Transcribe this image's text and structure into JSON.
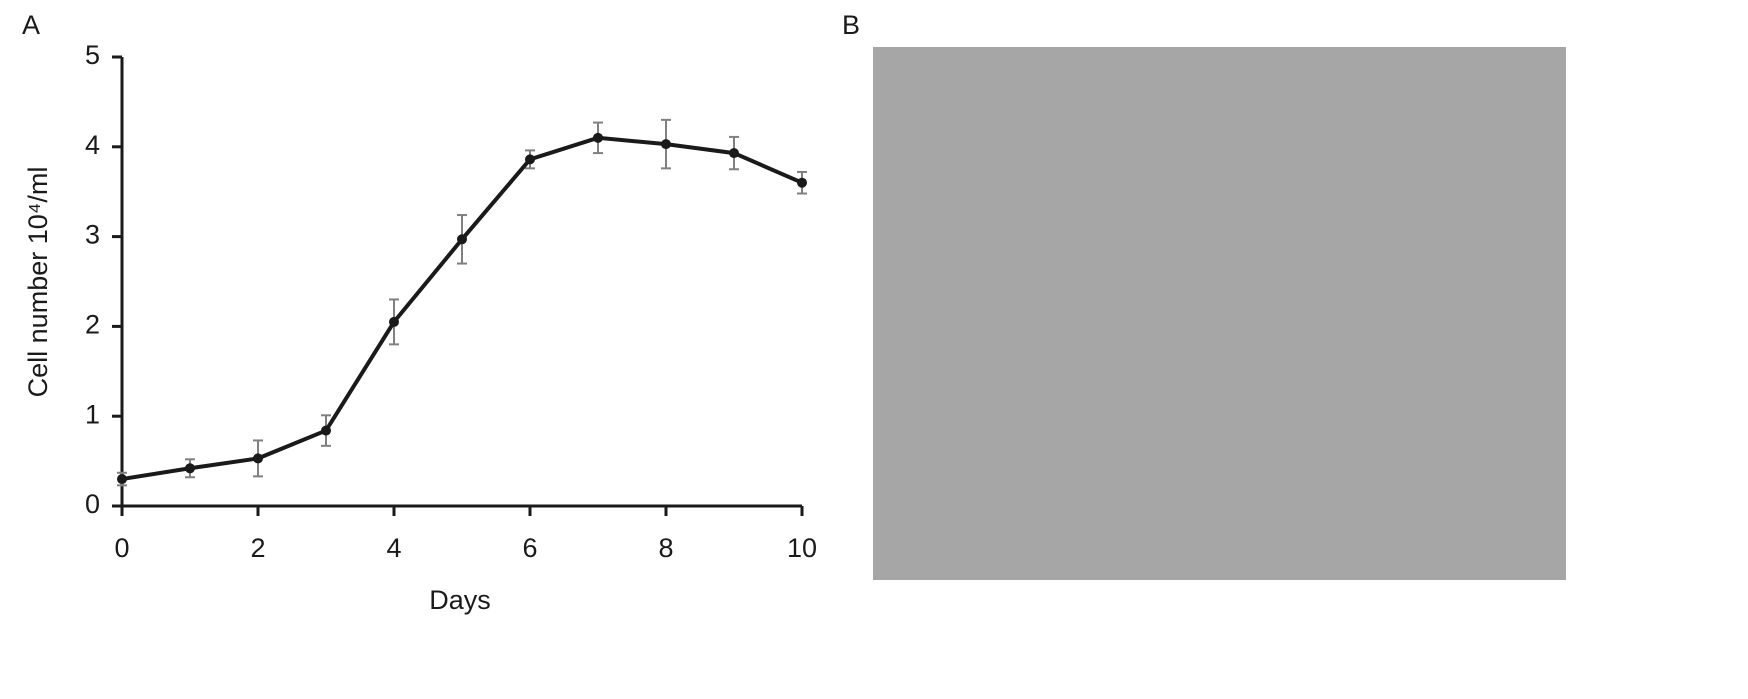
{
  "panel_labels": [
    "A",
    "B"
  ],
  "chart_data": {
    "type": "line",
    "x_label": "Days",
    "y_label": "Cell number 10⁴/ml",
    "x": [
      0,
      1,
      2,
      3,
      4,
      5,
      6,
      7,
      8,
      9,
      10
    ],
    "values": [
      0.3,
      0.42,
      0.53,
      0.84,
      2.05,
      2.97,
      3.86,
      4.1,
      4.03,
      3.93,
      3.6
    ],
    "errors": [
      0.07,
      0.1,
      0.2,
      0.17,
      0.25,
      0.27,
      0.1,
      0.17,
      0.27,
      0.18,
      0.12
    ],
    "color": "#1a1a1a",
    "error_color": "#808080",
    "xlim": [
      0,
      10
    ],
    "xticks": [
      0,
      2,
      4,
      6,
      8,
      10
    ],
    "ylim": [
      0,
      5
    ],
    "yticks": [
      0,
      1,
      2,
      3,
      4,
      5
    ]
  }
}
